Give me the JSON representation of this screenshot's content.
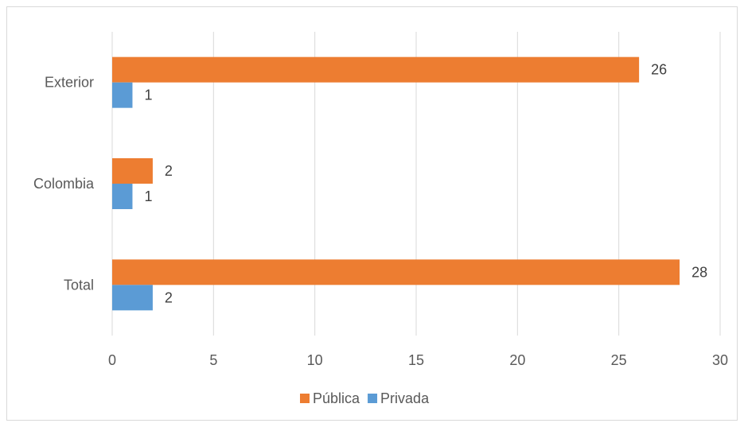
{
  "chart_data": {
    "type": "bar",
    "orientation": "horizontal",
    "categories": [
      "Exterior",
      "Colombia",
      "Total"
    ],
    "series": [
      {
        "name": "Pública",
        "values": [
          26,
          2,
          28
        ],
        "color": "#ED7D31"
      },
      {
        "name": "Privada",
        "values": [
          1,
          1,
          2
        ],
        "color": "#5B9BD5"
      }
    ],
    "xlim": [
      0,
      30
    ],
    "x_ticks": [
      "0",
      "5",
      "10",
      "15",
      "20",
      "25",
      "30"
    ],
    "grid": true,
    "legend_position": "bottom",
    "data_labels": true
  }
}
